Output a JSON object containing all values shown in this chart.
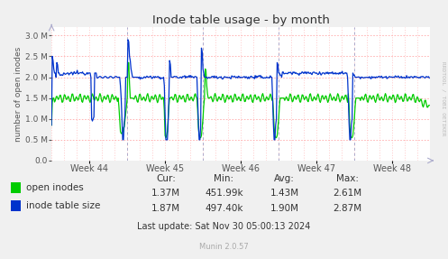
{
  "title": "Inode table usage - by month",
  "ylabel": "number of open inodes",
  "background_color": "#f0f0f0",
  "plot_bg_color": "#ffffff",
  "grid_color_dotted": "#ffaaaa",
  "grid_color_vert": "#aaaacc",
  "yticks": [
    0.0,
    0.5,
    1.0,
    1.5,
    2.0,
    2.5,
    3.0
  ],
  "ylim_max": 3.2,
  "xtick_labels": [
    "Week 44",
    "Week 45",
    "Week 46",
    "Week 47",
    "Week 48"
  ],
  "watermark": "RRDTOOL / TOBI OETIKER",
  "munin_version": "Munin 2.0.57",
  "legend_items": [
    "open inodes",
    "inode table size"
  ],
  "green_color": "#00cc00",
  "blue_color": "#0033cc",
  "stats_header": [
    "Cur:",
    "Min:",
    "Avg:",
    "Max:"
  ],
  "stats_open": [
    "1.37M",
    "451.99k",
    "1.43M",
    "2.61M"
  ],
  "stats_table": [
    "1.87M",
    "497.40k",
    "1.90M",
    "2.87M"
  ],
  "last_update": "Last update: Sat Nov 30 05:00:13 2024",
  "n_points": 500
}
